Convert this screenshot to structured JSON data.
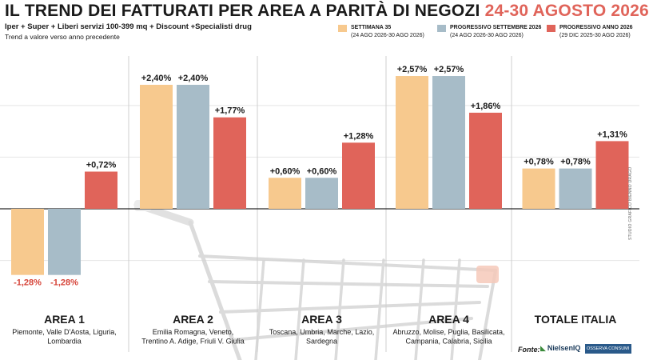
{
  "header": {
    "title_main": "IL TREND DEI FATTURATI PER AREA A PARITÀ DI NEGOZI",
    "title_period": "24-30 AGOSTO 2026",
    "subtitle": "Iper + Super + Liberi servizi 100-399 mq + Discount +Specialisti drug",
    "note": "Trend a valore verso anno precedente"
  },
  "legend": [
    {
      "name": "SETTIMANA 35",
      "period": "(24 AGO 2026-30 AGO 2026)",
      "color": "#f7c98e"
    },
    {
      "name": "PROGRESSIVO SETTEMBRE 2026",
      "period": "(24 AGO 2026-30 AGO 2026)",
      "color": "#a7bcc8"
    },
    {
      "name": "PROGRESSIVO ANNO 2026",
      "period": "(29 DIC 2025-30 AGO 2026)",
      "color": "#e0645a"
    }
  ],
  "footer": {
    "source_label": "Fonte:",
    "logo_nielsen": "NielsenIQ",
    "logo_osserva": "OSSERVA CONSUMI",
    "vertical_credit": "STUDIO GRAFICO BIENNO DRAGO"
  },
  "chart_data": {
    "type": "bar",
    "categories": [
      {
        "name": "AREA 1",
        "detail": [
          "Piemonte, Valle D'Aosta, Liguria,",
          "Lombardia"
        ]
      },
      {
        "name": "AREA 2",
        "detail": [
          "Emilia Romagna, Veneto,",
          "Trentino A. Adige, Friuli V. Giulia"
        ]
      },
      {
        "name": "AREA 3",
        "detail": [
          "Toscana, Umbria, Marche, Lazio,",
          "Sardegna"
        ]
      },
      {
        "name": "AREA 4",
        "detail": [
          "Abruzzo, Molise, Puglia, Basilicata,",
          "Campania, Calabria, Sicilia"
        ]
      },
      {
        "name": "TOTALE ITALIA",
        "detail": []
      }
    ],
    "series": [
      {
        "name": "SETTIMANA 35",
        "color": "#f7c98e",
        "values": [
          -1.28,
          2.4,
          0.6,
          2.57,
          0.78
        ],
        "labels": [
          "-1,28%",
          "+2,40%",
          "+0,60%",
          "+2,57%",
          "+0,78%"
        ]
      },
      {
        "name": "PROGRESSIVO SETTEMBRE 2026",
        "color": "#a7bcc8",
        "values": [
          -1.28,
          2.4,
          0.6,
          2.57,
          0.78
        ],
        "labels": [
          "-1,28%",
          "+2,40%",
          "+0,60%",
          "+2,57%",
          "+0,78%"
        ]
      },
      {
        "name": "PROGRESSIVO ANNO 2026",
        "color": "#e0645a",
        "values": [
          0.72,
          1.77,
          1.28,
          1.86,
          1.31
        ],
        "labels": [
          "+0,72%",
          "+1,77%",
          "+1,28%",
          "+1,86%",
          "+1,31%"
        ]
      }
    ],
    "ylim": [
      -1.65,
      3.0
    ],
    "grid": true,
    "legend_position": "top-right",
    "negative_label_color": "#d6453a"
  }
}
